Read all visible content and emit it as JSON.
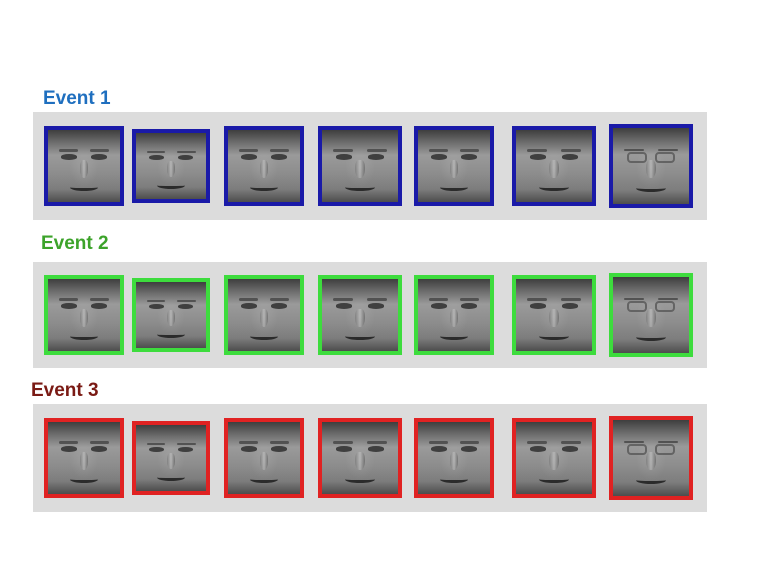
{
  "events": [
    {
      "label": "Event 1",
      "color": "#1f6fbf",
      "border": "#1a1aa8"
    },
    {
      "label": "Event 2",
      "color": "#3ca32a",
      "border": "#3ddc3d"
    },
    {
      "label": "Event 3",
      "color": "#7a1a14",
      "border": "#e02222"
    }
  ],
  "faces_per_event": 7,
  "glasses_face_index": 6
}
